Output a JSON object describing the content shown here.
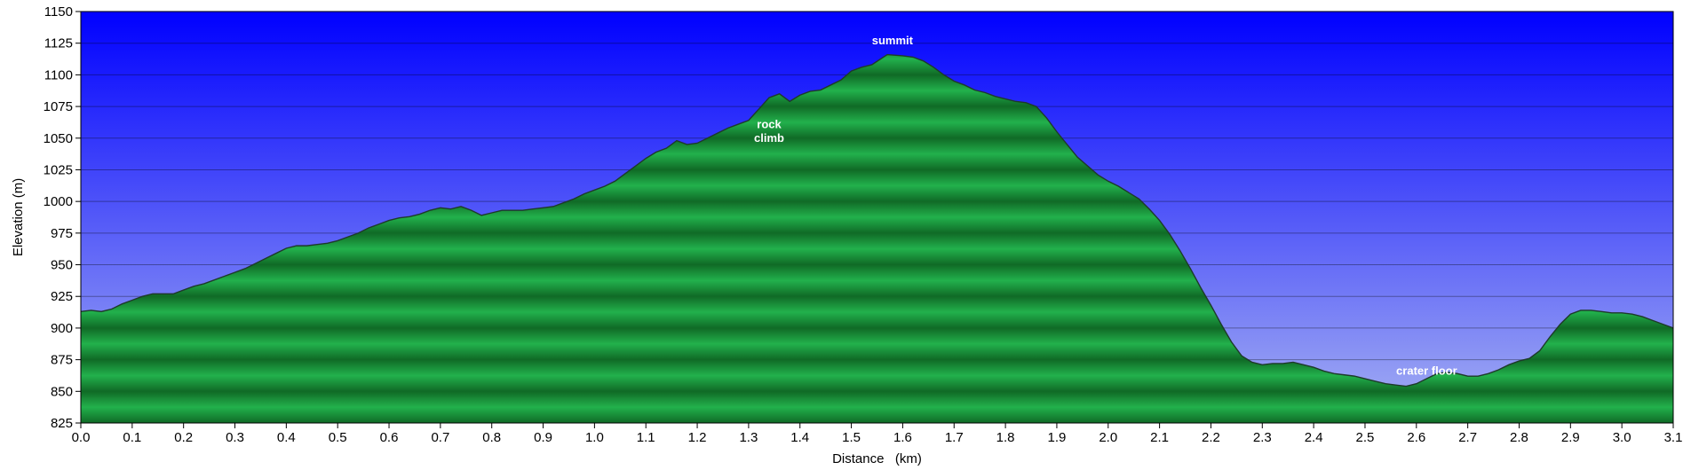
{
  "chart_data": {
    "type": "area",
    "title": "",
    "xlabel": "Distance   (km)",
    "ylabel": "Elevation (m)",
    "xlim": [
      0,
      3.1
    ],
    "ylim": [
      825,
      1150
    ],
    "x_ticks": [
      "0.0",
      "0.1",
      "0.2",
      "0.3",
      "0.4",
      "0.5",
      "0.6",
      "0.7",
      "0.8",
      "0.9",
      "1.0",
      "1.1",
      "1.2",
      "1.3",
      "1.4",
      "1.5",
      "1.6",
      "1.7",
      "1.8",
      "1.9",
      "2.0",
      "2.1",
      "2.2",
      "2.3",
      "2.4",
      "2.5",
      "2.6",
      "2.7",
      "2.8",
      "2.9",
      "3.0",
      "3.1"
    ],
    "y_ticks": [
      "825",
      "850",
      "875",
      "900",
      "925",
      "950",
      "975",
      "1000",
      "1025",
      "1050",
      "1075",
      "1100",
      "1125",
      "1150"
    ],
    "grid": "horizontal",
    "legend": "none",
    "colors": {
      "fill_light": "#22b14c",
      "fill_dark": "#106a26",
      "outline": "#1e3a2a",
      "sky_top": "#0000ff",
      "sky_bottom": "#a6b1f2"
    },
    "series": [
      {
        "x": [
          0.0,
          0.02,
          0.04,
          0.06,
          0.08,
          0.1,
          0.12,
          0.14,
          0.16,
          0.18,
          0.2,
          0.22,
          0.24,
          0.26,
          0.28,
          0.3,
          0.32,
          0.34,
          0.36,
          0.38,
          0.4,
          0.42,
          0.44,
          0.46,
          0.48,
          0.5,
          0.52,
          0.54,
          0.56,
          0.58,
          0.6,
          0.62,
          0.64,
          0.66,
          0.68,
          0.7,
          0.72,
          0.74,
          0.76,
          0.78,
          0.8,
          0.82,
          0.84,
          0.86,
          0.88,
          0.9,
          0.92,
          0.94,
          0.96,
          0.98,
          1.0,
          1.02,
          1.04,
          1.06,
          1.08,
          1.1,
          1.12,
          1.14,
          1.16,
          1.18,
          1.2,
          1.22,
          1.24,
          1.26,
          1.28,
          1.3,
          1.32,
          1.34,
          1.36,
          1.38,
          1.4,
          1.42,
          1.44,
          1.46,
          1.48,
          1.5,
          1.52,
          1.54,
          1.555,
          1.57,
          1.6,
          1.62,
          1.64,
          1.66,
          1.68,
          1.7,
          1.72,
          1.74,
          1.76,
          1.78,
          1.8,
          1.82,
          1.84,
          1.86,
          1.88,
          1.9,
          1.92,
          1.94,
          1.96,
          1.98,
          2.0,
          2.02,
          2.04,
          2.06,
          2.08,
          2.1,
          2.12,
          2.14,
          2.16,
          2.18,
          2.2,
          2.22,
          2.24,
          2.26,
          2.28,
          2.3,
          2.32,
          2.34,
          2.36,
          2.38,
          2.4,
          2.42,
          2.44,
          2.46,
          2.48,
          2.5,
          2.52,
          2.54,
          2.56,
          2.58,
          2.6,
          2.62,
          2.64,
          2.66,
          2.68,
          2.7,
          2.72,
          2.74,
          2.76,
          2.78,
          2.8,
          2.82,
          2.84,
          2.86,
          2.88,
          2.9,
          2.92,
          2.94,
          2.96,
          2.98,
          3.0,
          3.02,
          3.04,
          3.06,
          3.08,
          3.1
        ],
        "y": [
          913,
          914,
          913,
          915,
          919,
          922,
          925,
          927,
          927,
          927,
          930,
          933,
          935,
          938,
          941,
          944,
          947,
          951,
          955,
          959,
          963,
          965,
          965,
          966,
          967,
          969,
          972,
          975,
          979,
          982,
          985,
          987,
          988,
          990,
          993,
          995,
          994,
          996,
          993,
          989,
          991,
          993,
          993,
          993,
          994,
          995,
          996,
          999,
          1002,
          1006,
          1009,
          1012,
          1016,
          1022,
          1028,
          1034,
          1039,
          1042,
          1048,
          1045,
          1046,
          1050,
          1054,
          1058,
          1061,
          1064,
          1073,
          1082,
          1085,
          1079,
          1084,
          1087,
          1088,
          1092,
          1096,
          1103,
          1106,
          1108,
          1112,
          1116,
          1115,
          1114,
          1111,
          1106,
          1100,
          1095,
          1092,
          1088,
          1086,
          1083,
          1081,
          1079,
          1078,
          1075,
          1066,
          1055,
          1045,
          1035,
          1028,
          1021,
          1016,
          1012,
          1007,
          1002,
          994,
          985,
          974,
          961,
          947,
          932,
          918,
          903,
          889,
          878,
          873,
          871,
          872,
          872,
          873,
          871,
          869,
          866,
          864,
          863,
          862,
          860,
          858,
          856,
          855,
          854,
          856,
          860,
          864,
          865,
          864,
          862,
          862,
          864,
          867,
          871,
          874,
          876,
          882,
          893,
          903,
          911,
          914,
          914,
          913,
          912,
          912,
          911,
          909,
          906,
          903,
          900
        ]
      }
    ],
    "annotations": [
      {
        "text": "summit",
        "x": 1.58,
        "y": 1124
      },
      {
        "text": "rock",
        "x": 1.34,
        "y": 1058
      },
      {
        "text": "climb",
        "x": 1.34,
        "y": 1047
      },
      {
        "text": "crater floor",
        "x": 2.62,
        "y": 863
      }
    ]
  }
}
